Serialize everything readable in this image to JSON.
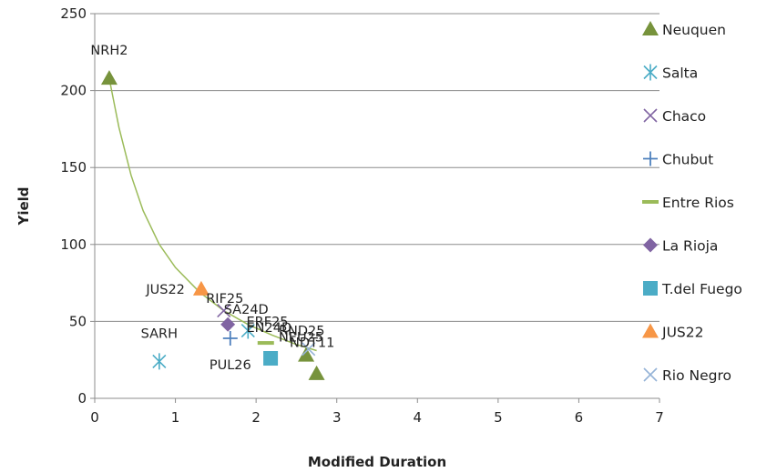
{
  "chart_data": {
    "type": "scatter",
    "title": "",
    "xlabel": "Modified Duration",
    "ylabel": "Yield",
    "xlim": [
      0,
      7
    ],
    "ylim": [
      0,
      250
    ],
    "x_ticks": [
      0,
      1,
      2,
      3,
      4,
      5,
      6,
      7
    ],
    "y_ticks": [
      0,
      50,
      100,
      150,
      200,
      250
    ],
    "grid": "horizontal",
    "legend_position": "right",
    "series": [
      {
        "name": "Neuquen",
        "marker": "triangle",
        "color": "#77933c",
        "points": [
          {
            "x": 0.18,
            "y": 208,
            "label": "NRH2"
          },
          {
            "x": 2.62,
            "y": 28,
            "label": "NDT11"
          },
          {
            "x": 2.75,
            "y": 16,
            "label": ""
          }
        ]
      },
      {
        "name": "Salta",
        "marker": "asterisk",
        "color": "#4bacc6",
        "points": [
          {
            "x": 0.8,
            "y": 24,
            "label": "SARH"
          },
          {
            "x": 1.9,
            "y": 44,
            "label": ""
          }
        ]
      },
      {
        "name": "Chaco",
        "marker": "x",
        "color": "#8064a2",
        "points": [
          {
            "x": 1.6,
            "y": 57,
            "label": ""
          }
        ]
      },
      {
        "name": "Chubut",
        "marker": "plus",
        "color": "#4f81bd",
        "points": [
          {
            "x": 1.68,
            "y": 39,
            "label": "PUL26"
          }
        ]
      },
      {
        "name": "Entre Rios",
        "marker": "dash",
        "color": "#9bbb59",
        "points": [
          {
            "x": 2.12,
            "y": 36,
            "label": ""
          }
        ]
      },
      {
        "name": "La Rioja",
        "marker": "diamond",
        "color": "#8064a2",
        "points": [
          {
            "x": 1.65,
            "y": 48,
            "label": ""
          }
        ]
      },
      {
        "name": "T.del Fuego",
        "marker": "square",
        "color": "#4bacc6",
        "points": [
          {
            "x": 2.18,
            "y": 26,
            "label": ""
          }
        ]
      },
      {
        "name": "JUS22",
        "marker": "triangle",
        "color": "#f79646",
        "points": [
          {
            "x": 1.32,
            "y": 71,
            "label": "JUS22"
          }
        ]
      },
      {
        "name": "Rio Negro",
        "marker": "x",
        "color": "#95b3d7",
        "points": [
          {
            "x": 2.65,
            "y": 32,
            "label": ""
          }
        ]
      }
    ],
    "annotations": [
      {
        "text": "RIF25",
        "x": 1.38,
        "y": 62
      },
      {
        "text": "SA24D",
        "x": 1.6,
        "y": 55
      },
      {
        "text": "ERF25",
        "x": 1.88,
        "y": 47
      },
      {
        "text": "EN24D",
        "x": 1.88,
        "y": 43
      },
      {
        "text": "RND25",
        "x": 2.28,
        "y": 41
      },
      {
        "text": "NEU25",
        "x": 2.28,
        "y": 37
      }
    ],
    "trendline": {
      "color": "#9bbb59",
      "points": [
        [
          0.18,
          208
        ],
        [
          0.3,
          176
        ],
        [
          0.45,
          145
        ],
        [
          0.6,
          122
        ],
        [
          0.8,
          100
        ],
        [
          1.0,
          85
        ],
        [
          1.3,
          69
        ],
        [
          1.6,
          57
        ],
        [
          1.9,
          48
        ],
        [
          2.2,
          41
        ],
        [
          2.5,
          35
        ],
        [
          2.75,
          31
        ]
      ]
    }
  }
}
